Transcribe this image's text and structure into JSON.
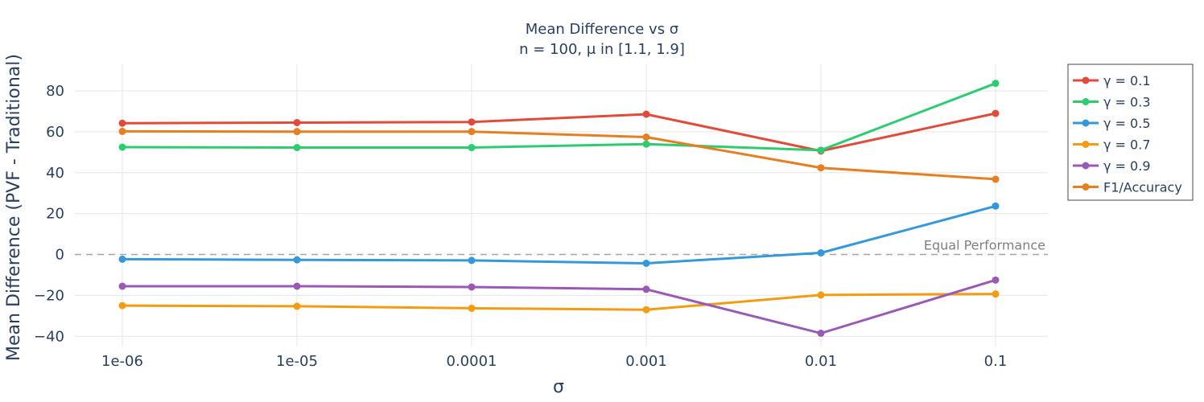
{
  "chart_data": {
    "type": "line",
    "title": "Mean Difference vs σ",
    "subtitle": "n = 100, μ in [1.1, 1.9]",
    "xlabel": "σ",
    "ylabel": "Mean Difference (PVF - Traditional)",
    "x_scale": "log",
    "x": [
      1e-06,
      1e-05,
      0.0001,
      0.001,
      0.01,
      0.1
    ],
    "x_ticks": [
      "1e-06",
      "1e-05",
      "0.0001",
      "0.001",
      "0.01",
      "0.1"
    ],
    "ylim": [
      -45,
      93
    ],
    "y_ticks": [
      -40,
      -20,
      0,
      20,
      40,
      60,
      80
    ],
    "grid": true,
    "legend_position": "right",
    "reference_line": {
      "y": 0,
      "label": "Equal Performance",
      "color": "#a6a6a6"
    },
    "series": [
      {
        "name": "γ = 0.1",
        "color": "#e14b3b",
        "values": [
          64.2,
          64.5,
          64.8,
          68.6,
          50.6,
          69.0
        ]
      },
      {
        "name": "γ = 0.3",
        "color": "#2ecc71",
        "values": [
          52.5,
          52.3,
          52.3,
          54.0,
          51.0,
          83.7
        ]
      },
      {
        "name": "γ = 0.5",
        "color": "#3498db",
        "values": [
          -2.3,
          -2.6,
          -2.9,
          -4.3,
          0.8,
          23.7
        ]
      },
      {
        "name": "γ = 0.7",
        "color": "#f39c12",
        "values": [
          -25.0,
          -25.3,
          -26.3,
          -27.0,
          -19.8,
          -19.3
        ]
      },
      {
        "name": "γ = 0.9",
        "color": "#9b59b6",
        "values": [
          -15.5,
          -15.5,
          -15.9,
          -17.0,
          -38.5,
          -12.5
        ]
      },
      {
        "name": "F1/Accuracy",
        "color": "#e67e22",
        "values": [
          60.2,
          60.1,
          60.1,
          57.4,
          42.4,
          36.8
        ]
      }
    ]
  }
}
